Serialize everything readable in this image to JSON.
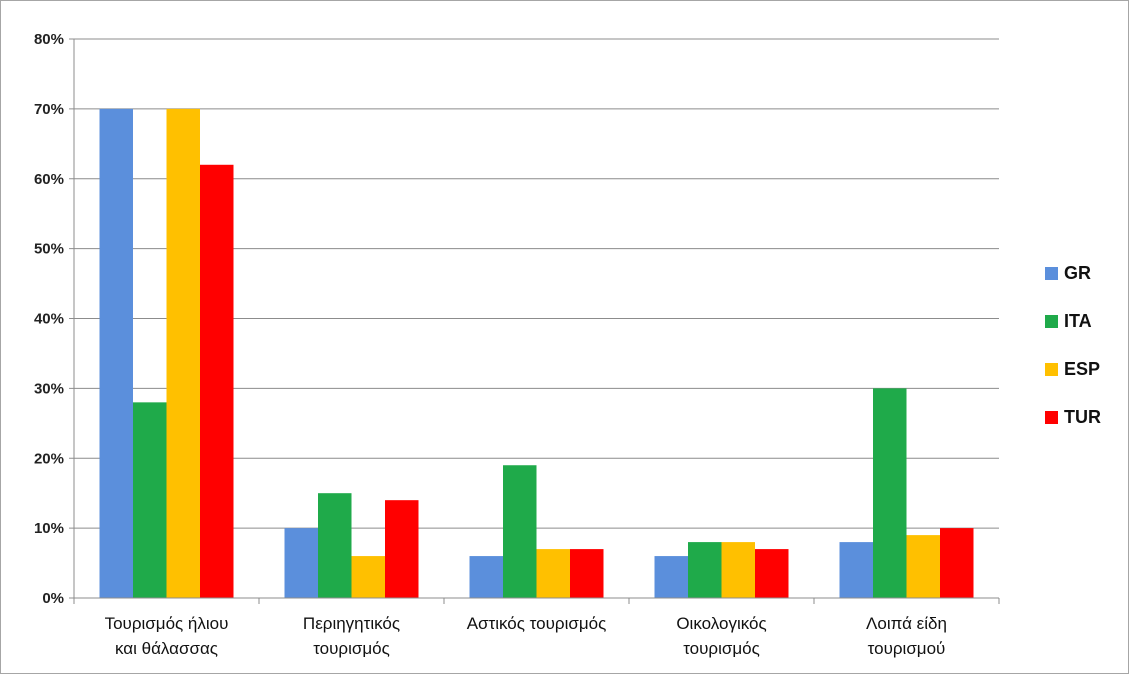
{
  "chart_data": {
    "type": "bar",
    "categories": [
      [
        "Τουρισμός ήλιου",
        "και θάλασσας"
      ],
      [
        "Περιηγητικός",
        "τουρισμός"
      ],
      [
        "Αστικός τουρισμός"
      ],
      [
        "Οικολογικός",
        "τουρισμός"
      ],
      [
        "Λοιπά είδη",
        "τουρισμού"
      ]
    ],
    "series": [
      {
        "name": "GR",
        "color": "#5b8fdc",
        "values": [
          70,
          10,
          6,
          6,
          8
        ]
      },
      {
        "name": "ITA",
        "color": "#1faa4a",
        "values": [
          28,
          15,
          19,
          8,
          30
        ]
      },
      {
        "name": "ESP",
        "color": "#ffc000",
        "values": [
          70,
          6,
          7,
          8,
          9
        ]
      },
      {
        "name": "TUR",
        "color": "#ff0000",
        "values": [
          62,
          14,
          7,
          7,
          10
        ]
      }
    ],
    "ylim": [
      0,
      80
    ],
    "yticks": [
      0,
      10,
      20,
      30,
      40,
      50,
      60,
      70,
      80
    ],
    "ytick_labels": [
      "0%",
      "10%",
      "20%",
      "30%",
      "40%",
      "50%",
      "60%",
      "70%",
      "80%"
    ],
    "grid": true,
    "legend_position": "right",
    "title": "",
    "xlabel": "",
    "ylabel": ""
  }
}
